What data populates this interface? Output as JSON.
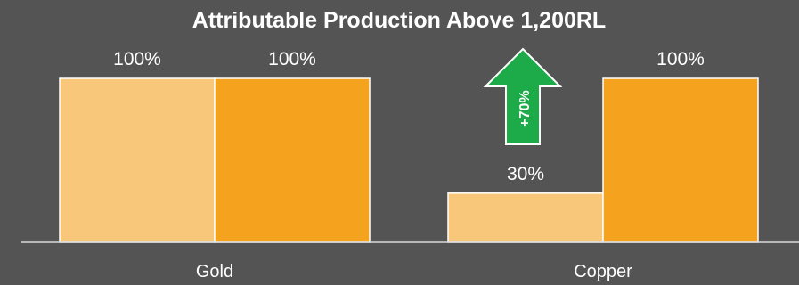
{
  "chart_data": {
    "type": "bar",
    "title": "Attributable Production Above 1,200RL",
    "categories": [
      "Gold",
      "Copper"
    ],
    "series": [
      {
        "values": [
          100,
          30
        ],
        "labels": [
          "100%",
          "30%"
        ],
        "color": "#F9C77A"
      },
      {
        "values": [
          100,
          100
        ],
        "labels": [
          "100%",
          "100%"
        ],
        "color": "#F5A21E"
      }
    ],
    "ylim": [
      0,
      100
    ],
    "annotation": {
      "text": "+70%",
      "color": "#1DAA48",
      "icon": "up-arrow-icon"
    },
    "background": "#545454",
    "axis_color": "#D9D9D9",
    "xlabel": "",
    "ylabel": "",
    "grid": false
  }
}
